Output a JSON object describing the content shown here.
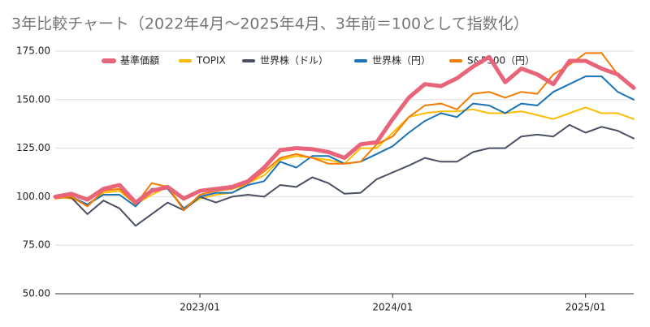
{
  "chart_data": {
    "type": "line",
    "title": "3年比較チャート（2022年4月～2025年4月、3年前＝100として指数化）",
    "categories": [
      null,
      null,
      null,
      null,
      null,
      null,
      null,
      null,
      null,
      "2023/01",
      null,
      null,
      null,
      null,
      null,
      null,
      null,
      null,
      null,
      null,
      null,
      "2024/01",
      null,
      null,
      null,
      null,
      null,
      null,
      null,
      null,
      null,
      null,
      null,
      "2025/01",
      null,
      null,
      null
    ],
    "series": [
      {
        "name": "基準価額",
        "color": "#e8647a",
        "values": [
          100,
          101.5,
          98.5,
          104,
          106,
          97,
          103,
          105,
          99,
          103,
          104,
          105,
          108,
          115,
          124,
          125,
          124.5,
          123,
          120,
          127,
          128,
          140,
          151,
          158,
          157,
          161,
          167,
          172,
          159,
          166,
          163,
          158,
          170,
          170,
          166,
          163,
          156
        ]
      },
      {
        "name": "TOPIX",
        "color": "#fbbc04",
        "values": [
          100,
          99,
          96,
          102,
          103,
          96,
          101,
          105,
          94,
          99,
          101,
          102,
          107,
          111,
          119,
          121,
          120,
          119,
          117,
          125,
          125,
          133,
          141,
          143,
          144,
          144,
          145,
          143,
          143,
          144,
          142,
          140,
          143,
          146,
          143,
          143,
          140
        ]
      },
      {
        "name": "世界株（ドル）",
        "color": "#4b4f63",
        "values": [
          100,
          99.5,
          91,
          98,
          94,
          85,
          91,
          97,
          93,
          100,
          97,
          100,
          101,
          100,
          106,
          105,
          110,
          107,
          101.5,
          102,
          109,
          112.5,
          116,
          120,
          118,
          118,
          123,
          125,
          125,
          131,
          132,
          131,
          137,
          133,
          136,
          134,
          130
        ]
      },
      {
        "name": "世界株（円）",
        "color": "#1a73b8",
        "values": [
          100,
          100,
          96,
          101,
          101,
          95,
          104,
          104,
          94,
          100,
          102,
          102,
          106,
          108,
          118,
          115,
          121,
          121,
          117,
          118,
          122,
          126,
          133,
          139,
          143,
          141,
          148,
          147,
          143,
          148,
          147,
          154,
          158,
          162,
          162,
          154,
          150
        ]
      },
      {
        "name": "S&P500（円）",
        "color": "#f57c00",
        "values": [
          99,
          100,
          95,
          103,
          104,
          96,
          107,
          105,
          93,
          101,
          103,
          104,
          107,
          113,
          120,
          122,
          120,
          117,
          117,
          118,
          127,
          131,
          141,
          147,
          148,
          145,
          153,
          154,
          151,
          154,
          153,
          163,
          168,
          174,
          174,
          163,
          157
        ]
      }
    ],
    "ylim": [
      50,
      175
    ],
    "yticks": [
      {
        "value": 50,
        "label": "50.00"
      },
      {
        "value": 75,
        "label": "75.00"
      },
      {
        "value": 100,
        "label": "100.00"
      },
      {
        "value": 125,
        "label": "125.00"
      },
      {
        "value": 150,
        "label": "150.00"
      },
      {
        "value": 175,
        "label": "175.00"
      }
    ],
    "grid": true,
    "legend": "top"
  }
}
